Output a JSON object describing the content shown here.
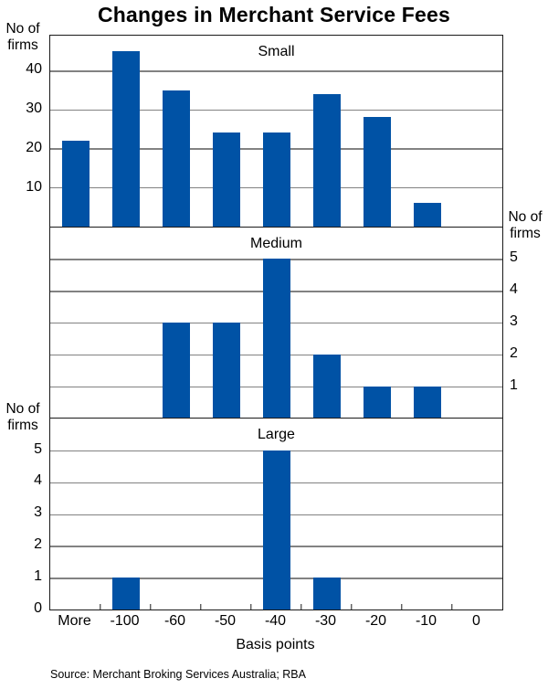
{
  "title": "Changes in Merchant Service Fees",
  "source": "Source: Merchant Broking Services Australia; RBA",
  "chart_data": {
    "type": "bar",
    "title": "Changes in Merchant Service Fees",
    "categories": [
      "More",
      "-100",
      "-60",
      "-50",
      "-40",
      "-30",
      "-20",
      "-10",
      "0"
    ],
    "xlabel": "Basis points",
    "ylabel": "No of firms",
    "ylabel_lines": [
      "No of",
      "firms"
    ],
    "bar_color": "#0052A5",
    "grid": true,
    "legend_position": "none",
    "panels": [
      {
        "name": "Small",
        "values": [
          22,
          45,
          35,
          24,
          24,
          34,
          28,
          6,
          0
        ],
        "ylim": [
          0,
          49
        ],
        "yticks": [
          10,
          20,
          30,
          40
        ],
        "ytick_side": "left"
      },
      {
        "name": "Medium",
        "values": [
          0,
          0,
          3,
          3,
          5,
          2,
          1,
          1,
          0
        ],
        "ylim": [
          0,
          6
        ],
        "yticks": [
          1,
          2,
          3,
          4,
          5
        ],
        "ytick_side": "right"
      },
      {
        "name": "Large",
        "values": [
          0,
          1,
          0,
          0,
          5,
          1,
          0,
          0,
          0
        ],
        "ylim": [
          0,
          6
        ],
        "yticks": [
          0,
          1,
          2,
          3,
          4,
          5
        ],
        "ytick_side": "left"
      }
    ]
  }
}
